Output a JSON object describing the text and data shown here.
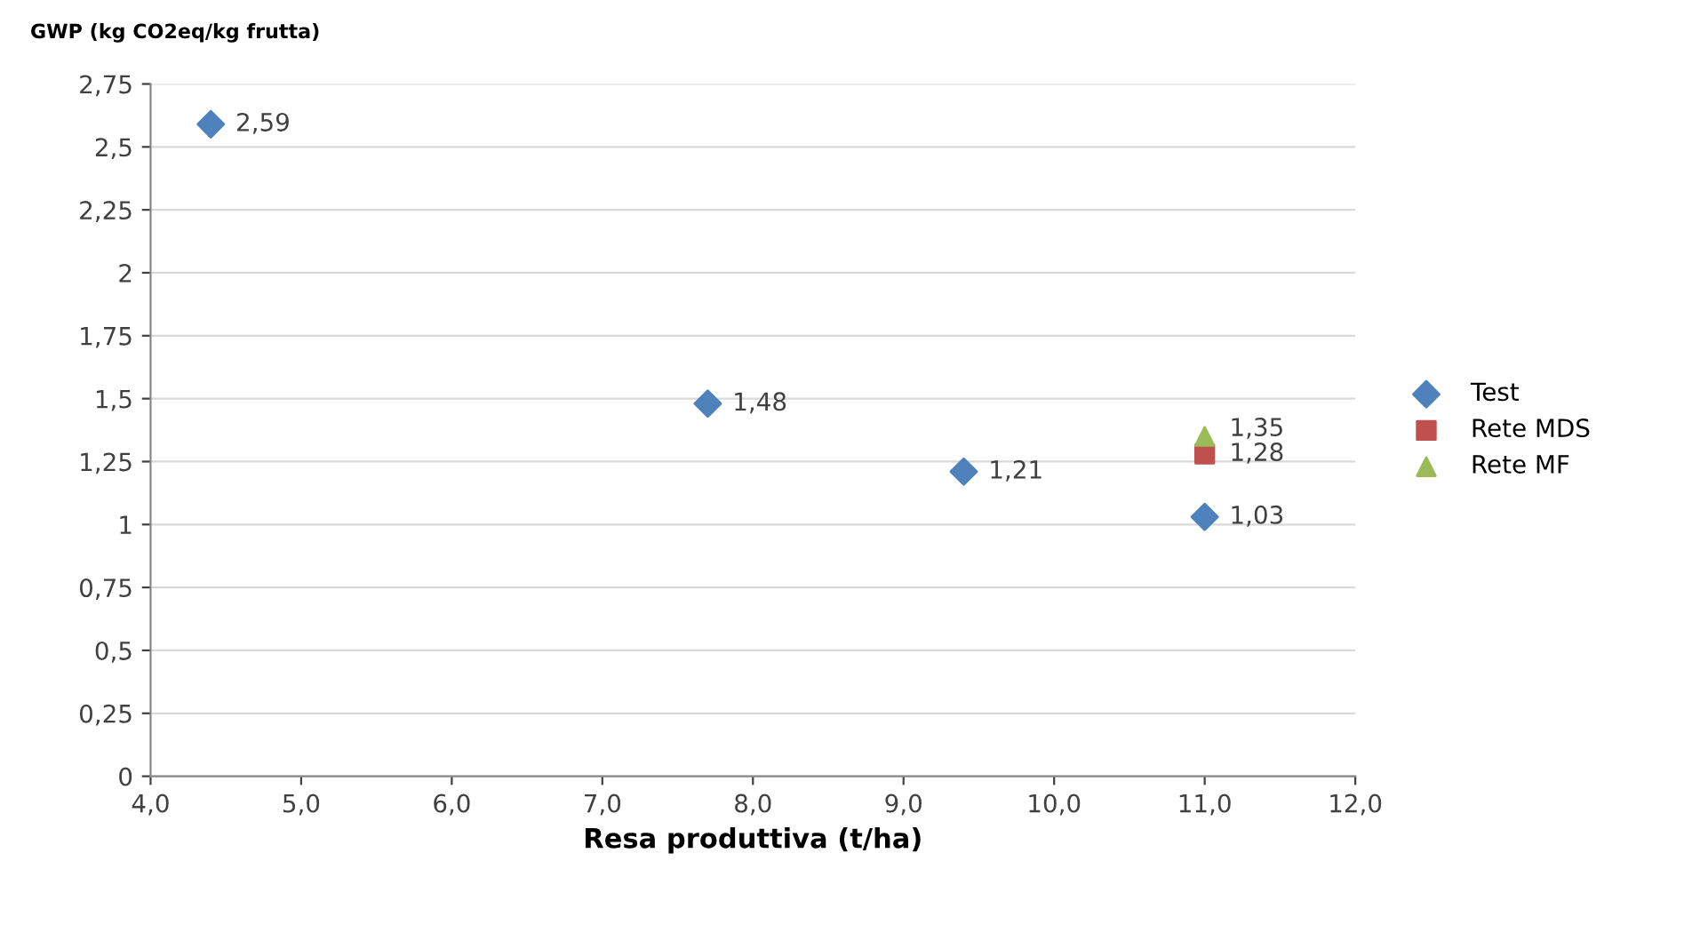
{
  "chart_data": {
    "type": "scatter",
    "ylabel": "GWP (kg CO2eq/kg frutta)",
    "xlabel": "Resa produttiva (t/ha)",
    "series": [
      {
        "name": "Test",
        "color": "#4f81bd",
        "marker": "diamond",
        "x": [
          4.4,
          7.7,
          9.4,
          11.0
        ],
        "values": [
          2.59,
          1.48,
          1.21,
          1.03
        ],
        "value_labels": [
          "2,59",
          "1,48",
          "1,21",
          "1,03"
        ]
      },
      {
        "name": "Rete MDS",
        "color": "#c0504d",
        "marker": "square",
        "x": [
          11.0
        ],
        "values": [
          1.28
        ],
        "value_labels": [
          "1,28"
        ]
      },
      {
        "name": "Rete MF",
        "color": "#9bbb59",
        "marker": "triangle",
        "x": [
          11.0
        ],
        "values": [
          1.35
        ],
        "value_labels": [
          "1,35"
        ]
      }
    ],
    "xlim": [
      4.0,
      12.0
    ],
    "xticks": [
      {
        "value": 4.0,
        "label": "4,0"
      },
      {
        "value": 5.0,
        "label": "5,0"
      },
      {
        "value": 6.0,
        "label": "6,0"
      },
      {
        "value": 7.0,
        "label": "7,0"
      },
      {
        "value": 8.0,
        "label": "8,0"
      },
      {
        "value": 9.0,
        "label": "9,0"
      },
      {
        "value": 10.0,
        "label": "10,0"
      },
      {
        "value": 11.0,
        "label": "11,0"
      },
      {
        "value": 12.0,
        "label": "12,0"
      }
    ],
    "ylim": [
      0,
      2.75
    ],
    "yticks": [
      0,
      {
        "value": 0.25,
        "label": "0,25"
      },
      {
        "value": 0.5,
        "label": "0,5"
      },
      {
        "value": 0.75,
        "label": "0,75"
      },
      1,
      {
        "value": 1.25,
        "label": "1,25"
      },
      {
        "value": 1.5,
        "label": "1,5"
      },
      {
        "value": 1.75,
        "label": "1,75"
      },
      2,
      {
        "value": 2.25,
        "label": "2,25"
      },
      {
        "value": 2.5,
        "label": "2,5"
      },
      {
        "value": 2.75,
        "label": "2,75"
      }
    ],
    "grid": "y",
    "legend": "right"
  }
}
